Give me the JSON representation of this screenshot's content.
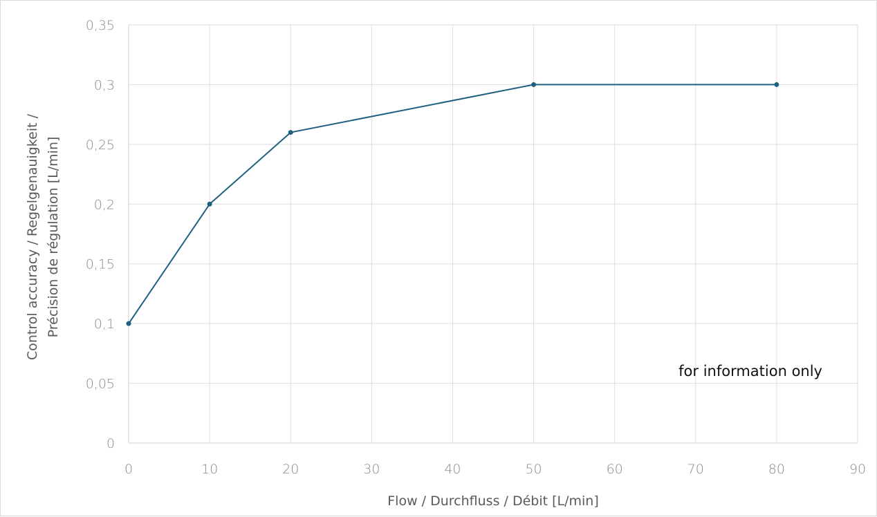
{
  "chart_data": {
    "type": "line",
    "title": "",
    "xlabel": "Flow / Durchfluss / Débit [L/min]",
    "ylabel_lines": [
      "Control accuracy / Regelgenauigkeit /",
      "Précision de régulation [L/min]"
    ],
    "annotation": "for information only",
    "xlim": [
      0,
      90
    ],
    "ylim": [
      0,
      0.35
    ],
    "x_ticks": [
      0,
      10,
      20,
      30,
      40,
      50,
      60,
      70,
      80,
      90
    ],
    "x_tick_labels": [
      "0",
      "10",
      "20",
      "30",
      "40",
      "50",
      "60",
      "70",
      "80",
      "90"
    ],
    "y_ticks": [
      0,
      0.05,
      0.1,
      0.15,
      0.2,
      0.25,
      0.3,
      0.35
    ],
    "y_tick_labels": [
      "0",
      "0,05",
      "0,1",
      "0,15",
      "0,2",
      "0,25",
      "0,3",
      "0,35"
    ],
    "grid": true,
    "legend": "none",
    "series": [
      {
        "color": "#1f5f7f",
        "points": [
          {
            "x": 0,
            "y": 0.1
          },
          {
            "x": 10,
            "y": 0.2
          },
          {
            "x": 20,
            "y": 0.26
          },
          {
            "x": 50,
            "y": 0.3
          },
          {
            "x": 80,
            "y": 0.3
          }
        ]
      }
    ]
  }
}
